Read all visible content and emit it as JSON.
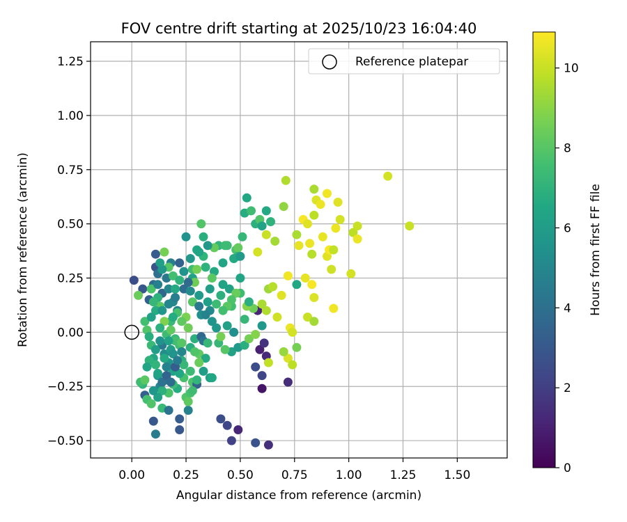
{
  "chart_data": {
    "type": "scatter",
    "title": "FOV centre drift starting at 2025/10/23 16:04:40",
    "xlabel": "Angular distance from reference (arcmin)",
    "ylabel": "Rotation from reference (arcmin)",
    "xlim": [
      -0.19,
      1.73
    ],
    "ylim": [
      -0.58,
      1.34
    ],
    "xticks": [
      "0.00",
      "0.25",
      "0.50",
      "0.75",
      "1.00",
      "1.25",
      "1.50"
    ],
    "xtick_values": [
      0,
      0.25,
      0.5,
      0.75,
      1.0,
      1.25,
      1.5
    ],
    "yticks": [
      "−0.50",
      "−0.25",
      "0.00",
      "0.25",
      "0.50",
      "0.75",
      "1.00",
      "1.25"
    ],
    "ytick_values": [
      -0.5,
      -0.25,
      0,
      0.25,
      0.5,
      0.75,
      1.0,
      1.25
    ],
    "grid": true,
    "legend": {
      "label": "Reference platepar",
      "position": "top-right"
    },
    "reference_point": {
      "x": 0.0,
      "y": 0.0
    },
    "colorbar": {
      "label": "Hours from first FF file",
      "colormap": "viridis",
      "min": 0,
      "max": 10.9,
      "ticks": [
        "0",
        "2",
        "4",
        "6",
        "8",
        "10"
      ],
      "tick_values": [
        0,
        2,
        4,
        6,
        8,
        10
      ]
    },
    "points": [
      [
        0.01,
        0.24,
        2.6
      ],
      [
        0.05,
        0.2,
        3.0
      ],
      [
        0.08,
        0.15,
        3.4
      ],
      [
        0.1,
        0.22,
        3.8
      ],
      [
        0.11,
        0.3,
        2.8
      ],
      [
        0.11,
        0.36,
        3.2
      ],
      [
        0.12,
        0.27,
        4.0
      ],
      [
        0.14,
        0.18,
        3.6
      ],
      [
        0.16,
        0.25,
        4.3
      ],
      [
        0.17,
        0.2,
        5.0
      ],
      [
        0.18,
        0.32,
        4.6
      ],
      [
        0.19,
        0.14,
        5.2
      ],
      [
        0.21,
        0.1,
        4.8
      ],
      [
        0.22,
        0.32,
        3.4
      ],
      [
        0.24,
        0.2,
        3.9
      ],
      [
        0.25,
        0.44,
        5.5
      ],
      [
        0.27,
        0.34,
        5.8
      ],
      [
        0.28,
        0.25,
        6.2
      ],
      [
        0.3,
        0.38,
        6.5
      ],
      [
        0.31,
        0.17,
        5.9
      ],
      [
        0.32,
        0.08,
        5.4
      ],
      [
        0.33,
        0.44,
        6.8
      ],
      [
        0.34,
        0.3,
        7.0
      ],
      [
        0.35,
        0.14,
        6.1
      ],
      [
        0.37,
        0.05,
        5.6
      ],
      [
        0.38,
        0.28,
        6.6
      ],
      [
        0.4,
        0.4,
        7.1
      ],
      [
        0.41,
        0.17,
        6.9
      ],
      [
        0.42,
        0.32,
        6.4
      ],
      [
        0.44,
        0.4,
        7.4
      ],
      [
        0.45,
        0.2,
        6.2
      ],
      [
        0.46,
        0.12,
        7.6
      ],
      [
        0.48,
        0.38,
        7.8
      ],
      [
        0.49,
        0.35,
        6.9
      ],
      [
        0.5,
        0.25,
        6.4
      ],
      [
        0.51,
        0.44,
        7.2
      ],
      [
        0.52,
        0.55,
        6.7
      ],
      [
        0.53,
        0.62,
        6.5
      ],
      [
        0.55,
        0.56,
        7.5
      ],
      [
        0.57,
        0.5,
        6.9
      ],
      [
        0.59,
        0.52,
        7.9
      ],
      [
        0.6,
        0.49,
        6.3
      ],
      [
        0.62,
        0.56,
        6.6
      ],
      [
        0.64,
        0.51,
        7.0
      ],
      [
        0.06,
        0.05,
        7.6
      ],
      [
        0.07,
        0.01,
        7.9
      ],
      [
        0.08,
        -0.02,
        6.8
      ],
      [
        0.09,
        -0.06,
        7.3
      ],
      [
        0.1,
        -0.12,
        6.5
      ],
      [
        0.11,
        -0.15,
        7.1
      ],
      [
        0.12,
        -0.2,
        5.9
      ],
      [
        0.13,
        -0.25,
        4.9
      ],
      [
        0.14,
        -0.06,
        4.4
      ],
      [
        0.15,
        -0.1,
        5.3
      ],
      [
        0.16,
        -0.22,
        4.2
      ],
      [
        0.17,
        -0.14,
        5.7
      ],
      [
        0.18,
        -0.08,
        6.0
      ],
      [
        0.19,
        -0.18,
        6.3
      ],
      [
        0.2,
        -0.03,
        7.2
      ],
      [
        0.21,
        -0.26,
        6.7
      ],
      [
        0.22,
        -0.06,
        7.5
      ],
      [
        0.23,
        -0.13,
        6.9
      ],
      [
        0.24,
        -0.21,
        7.7
      ],
      [
        0.25,
        -0.3,
        7.9
      ],
      [
        0.26,
        -0.36,
        4.8
      ],
      [
        0.27,
        -0.18,
        7.4
      ],
      [
        0.28,
        -0.23,
        7.8
      ],
      [
        0.29,
        -0.03,
        6.9
      ],
      [
        0.3,
        -0.24,
        3.4
      ],
      [
        0.31,
        -0.1,
        8.2
      ],
      [
        0.32,
        -0.02,
        3.7
      ],
      [
        0.33,
        -0.04,
        4.1
      ],
      [
        0.34,
        -0.12,
        6.6
      ],
      [
        0.35,
        -0.05,
        7.2
      ],
      [
        0.36,
        -0.21,
        6.1
      ],
      [
        0.06,
        -0.29,
        3.3
      ],
      [
        0.07,
        -0.31,
        7.6
      ],
      [
        0.09,
        -0.33,
        7.9
      ],
      [
        0.1,
        -0.41,
        3.0
      ],
      [
        0.11,
        -0.47,
        4.5
      ],
      [
        0.14,
        -0.35,
        7.3
      ],
      [
        0.17,
        -0.36,
        4.2
      ],
      [
        0.22,
        -0.4,
        3.2
      ],
      [
        0.22,
        -0.45,
        3.0
      ],
      [
        0.41,
        -0.4,
        2.6
      ],
      [
        0.44,
        -0.43,
        2.3
      ],
      [
        0.46,
        -0.5,
        2.1
      ],
      [
        0.49,
        -0.45,
        1.2
      ],
      [
        0.57,
        -0.51,
        2.8
      ],
      [
        0.63,
        -0.52,
        1.5
      ],
      [
        0.59,
        -0.08,
        1.0
      ],
      [
        0.61,
        -0.05,
        1.6
      ],
      [
        0.62,
        -0.11,
        1.3
      ],
      [
        0.6,
        -0.2,
        2.3
      ],
      [
        0.57,
        -0.16,
        2.6
      ],
      [
        0.6,
        -0.26,
        0.6
      ],
      [
        0.72,
        -0.23,
        1.4
      ],
      [
        0.58,
        0.1,
        1.1
      ],
      [
        0.6,
        0.03,
        5.8
      ],
      [
        0.46,
        -0.09,
        6.2
      ],
      [
        0.49,
        -0.07,
        5.9
      ],
      [
        0.52,
        -0.06,
        6.8
      ],
      [
        0.54,
        -0.03,
        8.6
      ],
      [
        0.57,
        -0.01,
        8.9
      ],
      [
        0.63,
        -0.14,
        9.9
      ],
      [
        0.72,
        -0.12,
        10.3
      ],
      [
        0.74,
        -0.15,
        9.8
      ],
      [
        0.76,
        -0.07,
        8.6
      ],
      [
        0.7,
        -0.09,
        9.2
      ],
      [
        0.73,
        0.02,
        10.6
      ],
      [
        0.74,
        0.0,
        10.2
      ],
      [
        0.67,
        0.07,
        10.1
      ],
      [
        0.62,
        0.1,
        9.6
      ],
      [
        0.63,
        0.2,
        9.3
      ],
      [
        0.65,
        0.21,
        9.7
      ],
      [
        0.69,
        0.17,
        10.4
      ],
      [
        0.6,
        0.13,
        9.5
      ],
      [
        0.56,
        0.11,
        8.5
      ],
      [
        0.53,
        0.12,
        8.9
      ],
      [
        0.52,
        0.06,
        7.2
      ],
      [
        0.54,
        0.14,
        6.8
      ],
      [
        0.5,
        0.18,
        7.5
      ],
      [
        0.48,
        0.18,
        8.4
      ],
      [
        0.46,
        0.15,
        7.8
      ],
      [
        0.44,
        0.12,
        8.1
      ],
      [
        0.42,
        0.1,
        7.6
      ],
      [
        0.49,
        0.39,
        8.3
      ],
      [
        0.58,
        0.37,
        10.2
      ],
      [
        0.62,
        0.45,
        10.0
      ],
      [
        0.66,
        0.42,
        9.4
      ],
      [
        0.7,
        0.58,
        9.1
      ],
      [
        0.71,
        0.7,
        9.6
      ],
      [
        0.76,
        0.45,
        9.5
      ],
      [
        0.77,
        0.4,
        10.5
      ],
      [
        0.79,
        0.52,
        10.8
      ],
      [
        0.81,
        0.5,
        10.4
      ],
      [
        0.82,
        0.41,
        10.6
      ],
      [
        0.83,
        0.36,
        9.7
      ],
      [
        0.84,
        0.54,
        9.8
      ],
      [
        0.84,
        0.66,
        9.5
      ],
      [
        0.85,
        0.61,
        10.3
      ],
      [
        0.87,
        0.59,
        10.6
      ],
      [
        0.88,
        0.44,
        10.5
      ],
      [
        0.9,
        0.64,
        10.7
      ],
      [
        0.9,
        0.35,
        10.4
      ],
      [
        0.91,
        0.38,
        10.8
      ],
      [
        0.92,
        0.29,
        10.1
      ],
      [
        0.93,
        0.38,
        9.9
      ],
      [
        0.94,
        0.48,
        10.6
      ],
      [
        0.95,
        0.6,
        10.4
      ],
      [
        0.96,
        0.52,
        10.2
      ],
      [
        0.72,
        0.26,
        10.7
      ],
      [
        0.76,
        0.22,
        6.5
      ],
      [
        0.8,
        0.25,
        10.5
      ],
      [
        0.83,
        0.22,
        10.8
      ],
      [
        0.84,
        0.16,
        10.3
      ],
      [
        0.81,
        0.07,
        10.0
      ],
      [
        0.84,
        0.05,
        9.4
      ],
      [
        0.93,
        0.11,
        10.7
      ],
      [
        1.01,
        0.27,
        10.2
      ],
      [
        1.02,
        0.46,
        9.8
      ],
      [
        1.04,
        0.49,
        10.0
      ],
      [
        1.04,
        0.43,
        10.6
      ],
      [
        1.18,
        0.72,
        10.2
      ],
      [
        1.28,
        0.49,
        10.0
      ],
      [
        0.32,
        0.5,
        7.9
      ],
      [
        0.38,
        0.39,
        8.3
      ],
      [
        0.43,
        0.4,
        7.4
      ],
      [
        0.37,
        0.25,
        8.1
      ],
      [
        0.29,
        0.23,
        8.5
      ],
      [
        0.28,
        0.14,
        8.0
      ],
      [
        0.25,
        0.07,
        8.7
      ],
      [
        0.23,
        0.05,
        8.2
      ],
      [
        0.21,
        0.09,
        7.7
      ],
      [
        0.18,
        0.05,
        7.3
      ],
      [
        0.15,
        0.05,
        8.8
      ],
      [
        0.13,
        0.12,
        8.1
      ],
      [
        0.12,
        0.16,
        6.9
      ],
      [
        0.09,
        0.2,
        7.8
      ],
      [
        0.03,
        0.17,
        8.4
      ],
      [
        0.15,
        0.37,
        8.6
      ],
      [
        0.17,
        0.3,
        8.0
      ],
      [
        0.19,
        0.26,
        7.6
      ],
      [
        0.28,
        0.29,
        7.5
      ],
      [
        0.3,
        0.29,
        8.6
      ],
      [
        0.33,
        0.35,
        7.1
      ],
      [
        0.1,
        0.14,
        7.2
      ],
      [
        0.11,
        0.1,
        6.7
      ],
      [
        0.09,
        0.07,
        6.2
      ],
      [
        0.13,
        0.02,
        6.9
      ],
      [
        0.16,
        -0.01,
        7.4
      ],
      [
        0.18,
        0.01,
        8.2
      ],
      [
        0.2,
        -0.04,
        7.6
      ],
      [
        0.23,
        -0.05,
        8.0
      ],
      [
        0.26,
        0.02,
        8.5
      ],
      [
        0.27,
        -0.07,
        6.8
      ],
      [
        0.29,
        -0.09,
        7.9
      ],
      [
        0.31,
        -0.14,
        8.4
      ],
      [
        0.24,
        -0.15,
        7.2
      ],
      [
        0.22,
        -0.19,
        6.5
      ],
      [
        0.19,
        -0.24,
        7.4
      ],
      [
        0.17,
        -0.28,
        7.8
      ],
      [
        0.14,
        -0.27,
        6.9
      ],
      [
        0.12,
        -0.19,
        6.3
      ],
      [
        0.05,
        -0.24,
        7.1
      ],
      [
        0.04,
        -0.23,
        7.5
      ],
      [
        0.06,
        -0.22,
        8.1
      ],
      [
        0.08,
        -0.13,
        7.0
      ],
      [
        0.07,
        -0.16,
        6.4
      ],
      [
        0.27,
        -0.28,
        7.7
      ],
      [
        0.26,
        -0.32,
        8.2
      ],
      [
        0.37,
        -0.21,
        6.5
      ],
      [
        0.4,
        -0.05,
        7.2
      ],
      [
        0.43,
        -0.08,
        8.0
      ],
      [
        0.41,
        -0.02,
        8.6
      ],
      [
        0.39,
        0.13,
        7.4
      ],
      [
        0.36,
        0.2,
        6.0
      ],
      [
        0.42,
        0.22,
        6.3
      ],
      [
        0.47,
        0.34,
        6.6
      ],
      [
        0.5,
        0.35,
        5.9
      ],
      [
        0.35,
        0.4,
        5.8
      ],
      [
        0.31,
        0.37,
        6.4
      ],
      [
        0.26,
        0.23,
        3.8
      ],
      [
        0.2,
        0.16,
        4.6
      ],
      [
        0.17,
        0.13,
        5.0
      ],
      [
        0.14,
        0.1,
        5.7
      ],
      [
        0.16,
        -0.16,
        4.8
      ],
      [
        0.19,
        -0.1,
        5.6
      ],
      [
        0.33,
        -0.18,
        6.0
      ],
      [
        0.3,
        -0.22,
        7.1
      ],
      [
        0.28,
        -0.27,
        7.5
      ],
      [
        0.12,
        -0.3,
        6.2
      ],
      [
        0.1,
        -0.27,
        5.7
      ],
      [
        0.14,
        -0.23,
        4.1
      ],
      [
        0.16,
        -0.2,
        3.5
      ],
      [
        0.18,
        -0.23,
        3.9
      ],
      [
        0.2,
        -0.16,
        3.2
      ],
      [
        0.21,
        -0.13,
        4.5
      ],
      [
        0.23,
        -0.09,
        5.0
      ],
      [
        0.47,
        0.0,
        5.4
      ],
      [
        0.44,
        0.03,
        6.2
      ],
      [
        0.39,
        0.02,
        5.8
      ],
      [
        0.36,
        0.1,
        5.1
      ],
      [
        0.34,
        0.08,
        4.8
      ],
      [
        0.31,
        0.12,
        4.4
      ],
      [
        0.12,
        0.22,
        4.7
      ],
      [
        0.2,
        0.2,
        6.6
      ],
      [
        0.22,
        0.24,
        7.0
      ],
      [
        0.24,
        0.28,
        5.5
      ],
      [
        0.27,
        0.19,
        5.2
      ],
      [
        0.14,
        0.29,
        5.8
      ],
      [
        0.13,
        0.32,
        6.1
      ],
      [
        0.15,
        -0.12,
        6.6
      ],
      [
        0.11,
        -0.08,
        6.0
      ],
      [
        0.13,
        -0.04,
        5.5
      ],
      [
        0.17,
        -0.04,
        6.3
      ],
      [
        0.19,
        0.07,
        6.7
      ]
    ]
  }
}
